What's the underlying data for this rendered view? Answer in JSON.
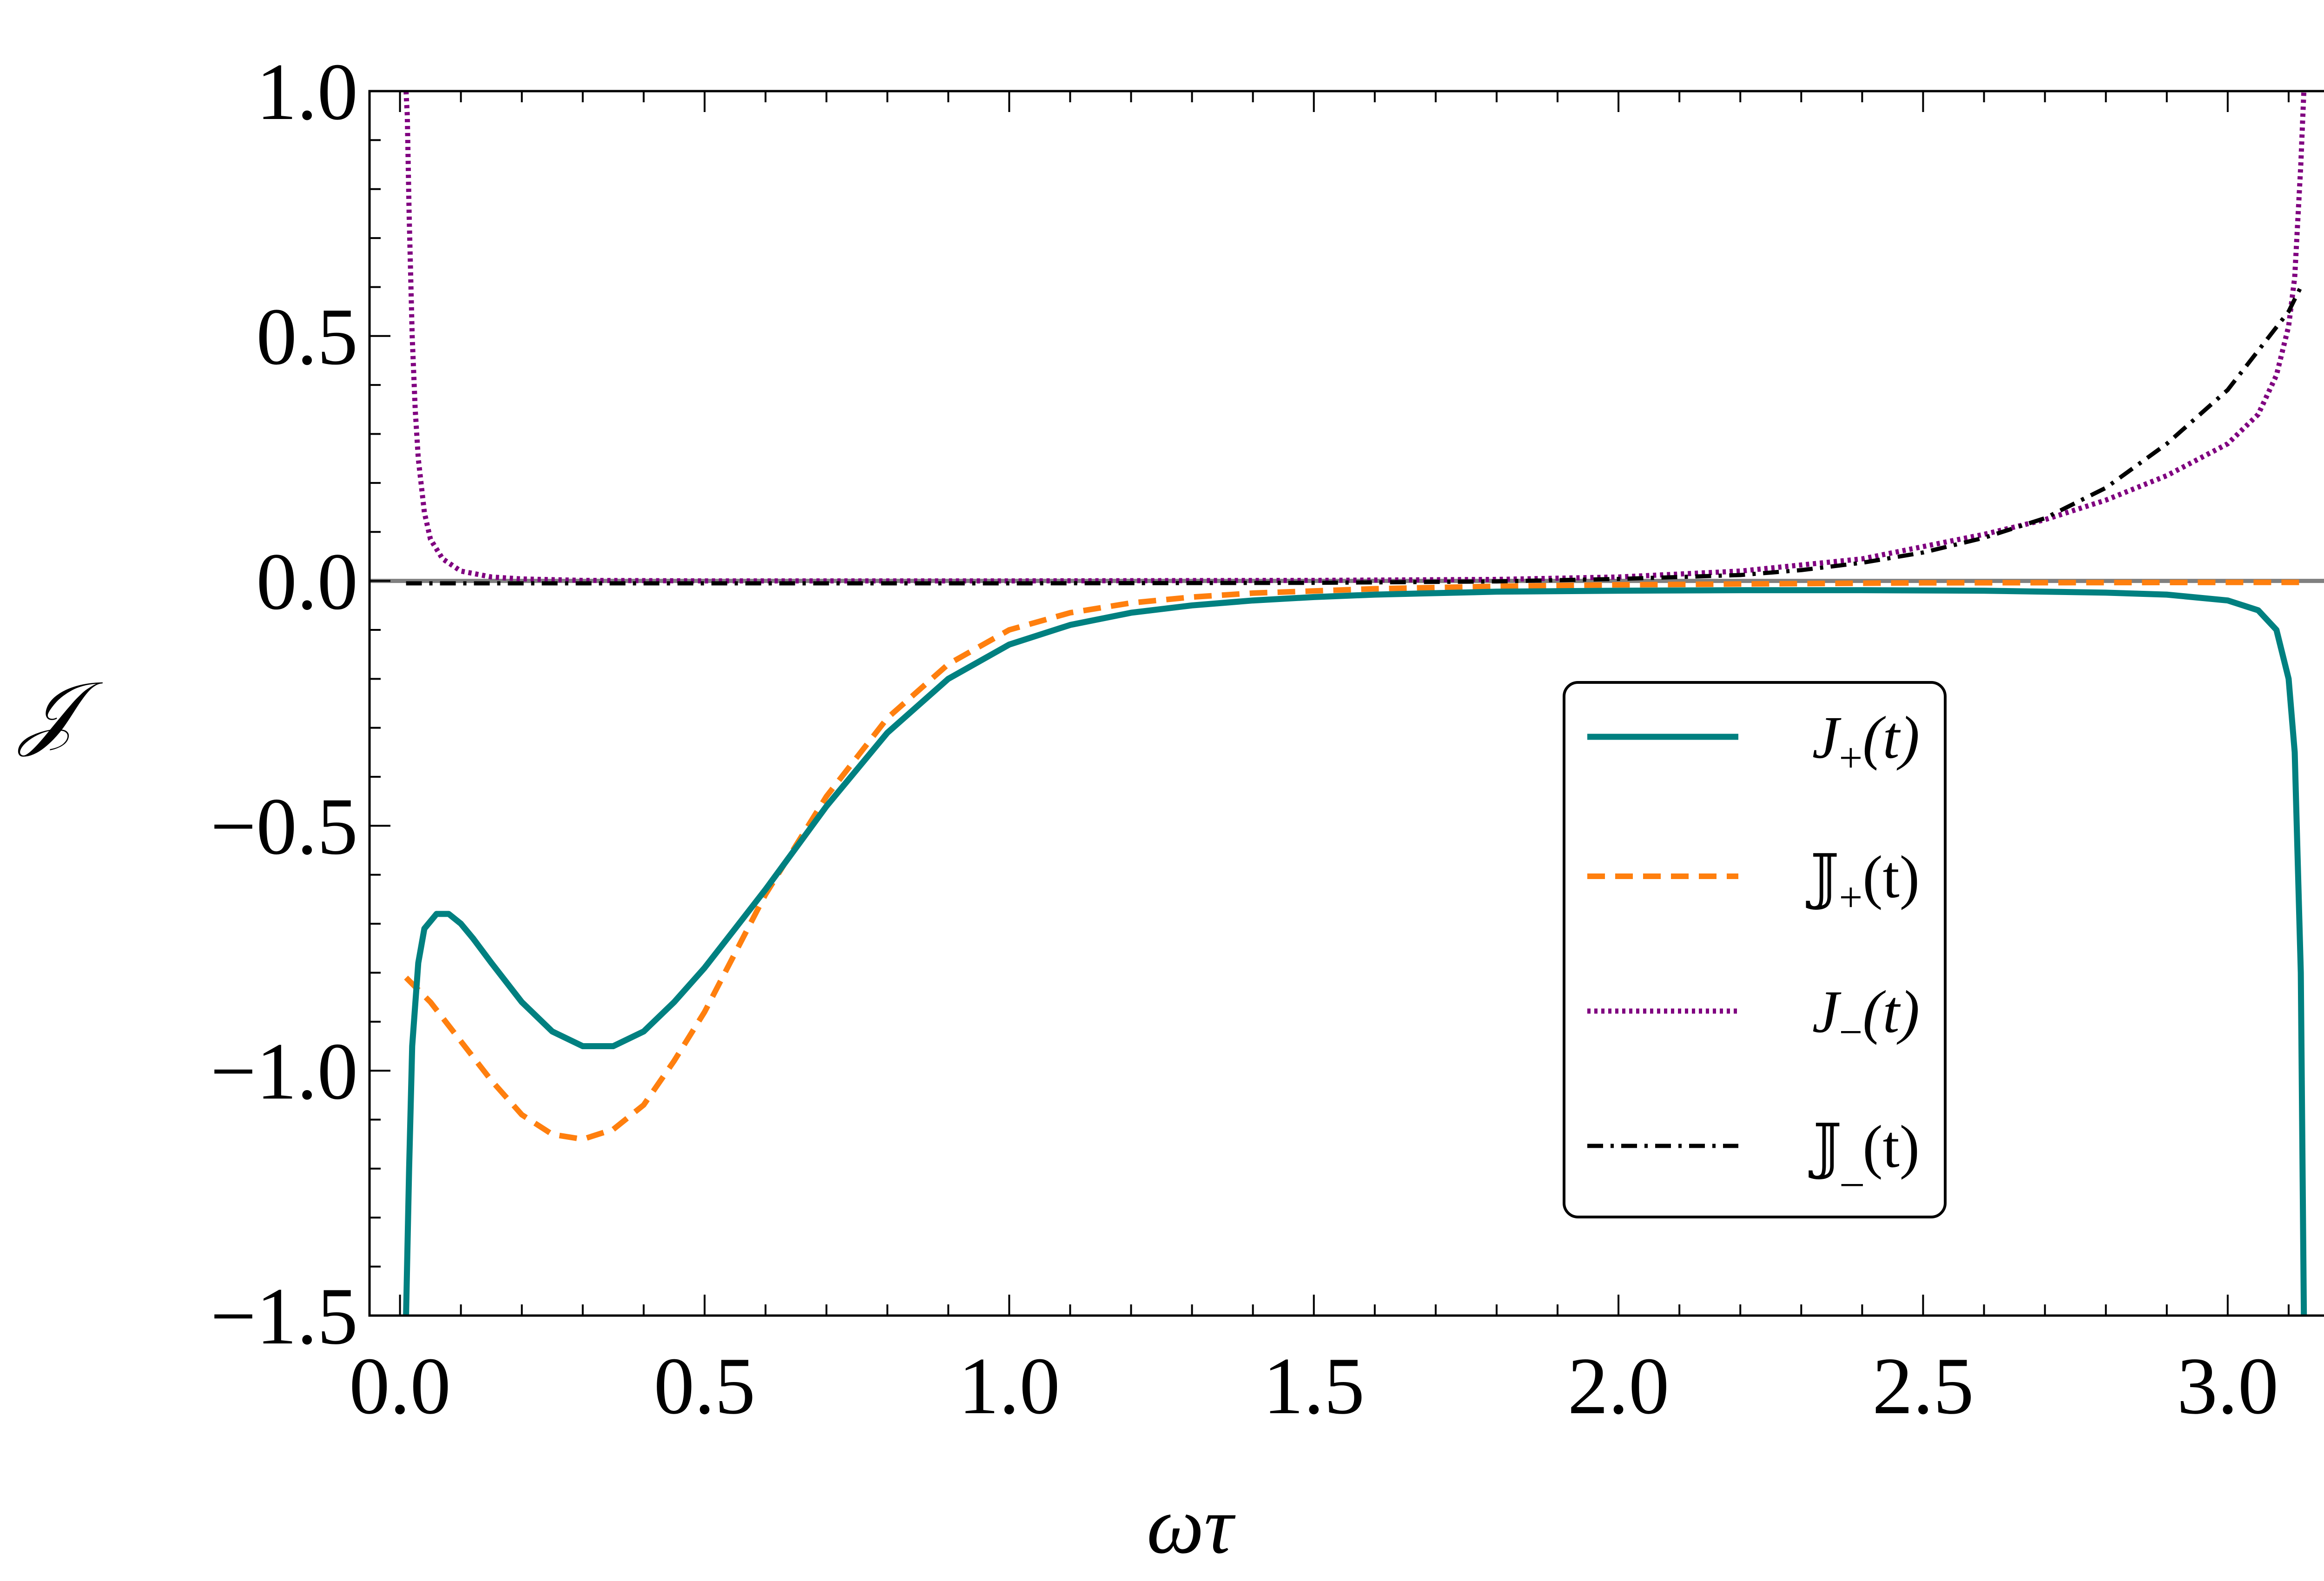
{
  "chart_data": {
    "type": "line",
    "title": "",
    "xlabel": "ωτ",
    "ylabel": "𝒥",
    "xlim": [
      -0.05,
      3.2
    ],
    "ylim": [
      -1.5,
      1.0
    ],
    "grid": false,
    "legend_position": "right-center",
    "x_ticks": [
      {
        "value": 0.0,
        "label": "0.0"
      },
      {
        "value": 0.5,
        "label": "0.5"
      },
      {
        "value": 1.0,
        "label": "1.0"
      },
      {
        "value": 1.5,
        "label": "1.5"
      },
      {
        "value": 2.0,
        "label": "2.0"
      },
      {
        "value": 2.5,
        "label": "2.5"
      },
      {
        "value": 3.0,
        "label": "3.0"
      }
    ],
    "y_ticks": [
      {
        "value": 1.0,
        "label": "1.0"
      },
      {
        "value": 0.5,
        "label": "0.5"
      },
      {
        "value": 0.0,
        "label": "0.0"
      },
      {
        "value": -0.5,
        "label": "−0.5"
      },
      {
        "value": -1.0,
        "label": "−1.0"
      },
      {
        "value": -1.5,
        "label": "−1.5"
      }
    ],
    "reference_line": {
      "y": 0.0,
      "color": "#808080"
    },
    "series": [
      {
        "name": "J+(t)",
        "label_main": "J",
        "label_sub": "+",
        "label_rest": "(t)",
        "italic": true,
        "color": "#008080",
        "dash": "solid",
        "x": [
          0.01,
          0.015,
          0.02,
          0.03,
          0.04,
          0.06,
          0.08,
          0.1,
          0.12,
          0.15,
          0.2,
          0.25,
          0.3,
          0.35,
          0.4,
          0.45,
          0.5,
          0.55,
          0.6,
          0.7,
          0.8,
          0.9,
          1.0,
          1.1,
          1.2,
          1.3,
          1.4,
          1.5,
          1.6,
          1.8,
          2.0,
          2.2,
          2.4,
          2.6,
          2.8,
          2.9,
          3.0,
          3.05,
          3.08,
          3.1,
          3.11,
          3.12,
          3.125
        ],
        "y": [
          -1.5,
          -1.2,
          -0.95,
          -0.78,
          -0.71,
          -0.68,
          -0.68,
          -0.7,
          -0.73,
          -0.78,
          -0.86,
          -0.92,
          -0.95,
          -0.95,
          -0.92,
          -0.86,
          -0.79,
          -0.71,
          -0.63,
          -0.46,
          -0.31,
          -0.2,
          -0.13,
          -0.09,
          -0.065,
          -0.05,
          -0.04,
          -0.033,
          -0.028,
          -0.022,
          -0.02,
          -0.019,
          -0.019,
          -0.02,
          -0.024,
          -0.028,
          -0.04,
          -0.06,
          -0.1,
          -0.2,
          -0.35,
          -0.8,
          -1.5
        ]
      },
      {
        "name": "𝕁+(t)",
        "label_main": "𝕁",
        "label_sub": "+",
        "label_rest": "(t)",
        "italic": false,
        "color": "#ff7f0e",
        "dash": "dashed",
        "x": [
          0.01,
          0.05,
          0.1,
          0.15,
          0.2,
          0.25,
          0.3,
          0.35,
          0.4,
          0.45,
          0.5,
          0.55,
          0.6,
          0.7,
          0.8,
          0.9,
          1.0,
          1.1,
          1.2,
          1.3,
          1.4,
          1.6,
          1.8,
          2.0,
          2.5,
          3.0,
          3.12
        ],
        "y": [
          -0.81,
          -0.86,
          -0.94,
          -1.02,
          -1.09,
          -1.13,
          -1.14,
          -1.12,
          -1.07,
          -0.98,
          -0.88,
          -0.76,
          -0.64,
          -0.44,
          -0.28,
          -0.17,
          -0.1,
          -0.065,
          -0.045,
          -0.033,
          -0.025,
          -0.016,
          -0.011,
          -0.008,
          -0.004,
          -0.003,
          -0.003
        ]
      },
      {
        "name": "J−(t)",
        "label_main": "J",
        "label_sub": "−",
        "label_rest": "(t)",
        "italic": true,
        "color": "#800080",
        "dash": "dotted",
        "x": [
          0.01,
          0.012,
          0.015,
          0.02,
          0.025,
          0.03,
          0.04,
          0.05,
          0.07,
          0.1,
          0.15,
          0.2,
          0.3,
          0.5,
          1.0,
          1.5,
          1.8,
          2.0,
          2.2,
          2.4,
          2.6,
          2.7,
          2.8,
          2.9,
          3.0,
          3.05,
          3.08,
          3.1,
          3.11,
          3.12,
          3.125
        ],
        "y": [
          1.0,
          0.95,
          0.75,
          0.5,
          0.35,
          0.25,
          0.14,
          0.085,
          0.045,
          0.02,
          0.008,
          0.004,
          0.001,
          0.0,
          0.0,
          0.001,
          0.003,
          0.008,
          0.02,
          0.045,
          0.095,
          0.125,
          0.165,
          0.215,
          0.28,
          0.34,
          0.42,
          0.52,
          0.62,
          0.85,
          1.0
        ]
      },
      {
        "name": "𝕁_(t)",
        "label_main": "𝕁",
        "label_sub": "_",
        "label_rest": "(t)",
        "italic": false,
        "color": "#000000",
        "dash": "dashdot",
        "x": [
          0.01,
          0.5,
          1.0,
          1.5,
          1.8,
          2.0,
          2.2,
          2.3,
          2.4,
          2.5,
          2.6,
          2.7,
          2.8,
          2.9,
          3.0,
          3.1,
          3.12
        ],
        "y": [
          -0.005,
          -0.005,
          -0.005,
          -0.004,
          -0.001,
          0.004,
          0.012,
          0.022,
          0.037,
          0.058,
          0.088,
          0.128,
          0.19,
          0.28,
          0.39,
          0.55,
          0.6
        ]
      }
    ]
  }
}
